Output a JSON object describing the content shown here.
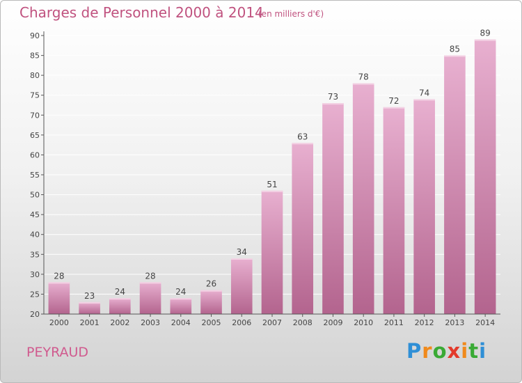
{
  "header": {
    "title": "Charges de Personnel 2000 à 2014",
    "subtitle": "(en milliers d'€)"
  },
  "footer": {
    "commune": "PEYRAUD",
    "logo": "Proxiti"
  },
  "colors": {
    "bar_top": "#e8b0d0",
    "bar_bottom": "#b3648e",
    "title": "#c0527f",
    "axis": "#555555",
    "grid": "#ffffff"
  },
  "chart_data": {
    "type": "bar",
    "title": "Charges de Personnel 2000 à 2014",
    "subtitle": "(en milliers d'€)",
    "categories": [
      "2000",
      "2001",
      "2002",
      "2003",
      "2004",
      "2005",
      "2006",
      "2007",
      "2008",
      "2009",
      "2010",
      "2011",
      "2012",
      "2013",
      "2014"
    ],
    "values": [
      28,
      23,
      24,
      28,
      24,
      26,
      34,
      51,
      63,
      73,
      78,
      72,
      74,
      85,
      89
    ],
    "ylim": [
      20,
      90
    ],
    "yticks": [
      20,
      25,
      30,
      35,
      40,
      45,
      50,
      55,
      60,
      65,
      70,
      75,
      80,
      85,
      90
    ],
    "grid": true,
    "data_labels": true,
    "legend": "none"
  }
}
